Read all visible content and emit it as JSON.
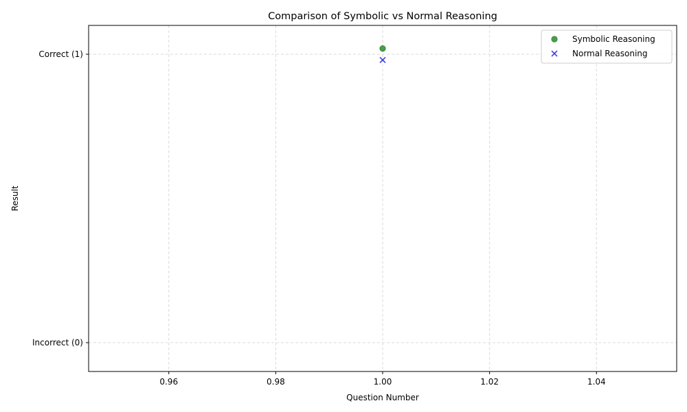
{
  "chart_data": {
    "type": "scatter",
    "title": "Comparison of Symbolic vs Normal Reasoning",
    "xlabel": "Question Number",
    "ylabel": "Result",
    "xlim": [
      0.945,
      1.055
    ],
    "ylim": [
      -0.1,
      1.1
    ],
    "xticks": [
      0.96,
      0.98,
      1.0,
      1.02,
      1.04
    ],
    "xtick_labels": [
      "0.96",
      "0.98",
      "1.00",
      "1.02",
      "1.04"
    ],
    "yticks": [
      0,
      1
    ],
    "ytick_labels": [
      "Incorrect (0)",
      "Correct (1)"
    ],
    "grid": true,
    "legend_position": "top-right",
    "series": [
      {
        "name": "Symbolic Reasoning",
        "marker": "circle",
        "color": "#2e8b2e",
        "points": [
          {
            "x": 1.0,
            "y": 1.02
          }
        ]
      },
      {
        "name": "Normal Reasoning",
        "marker": "x",
        "color": "#3a3adf",
        "points": [
          {
            "x": 1.0,
            "y": 0.98
          }
        ]
      }
    ]
  }
}
